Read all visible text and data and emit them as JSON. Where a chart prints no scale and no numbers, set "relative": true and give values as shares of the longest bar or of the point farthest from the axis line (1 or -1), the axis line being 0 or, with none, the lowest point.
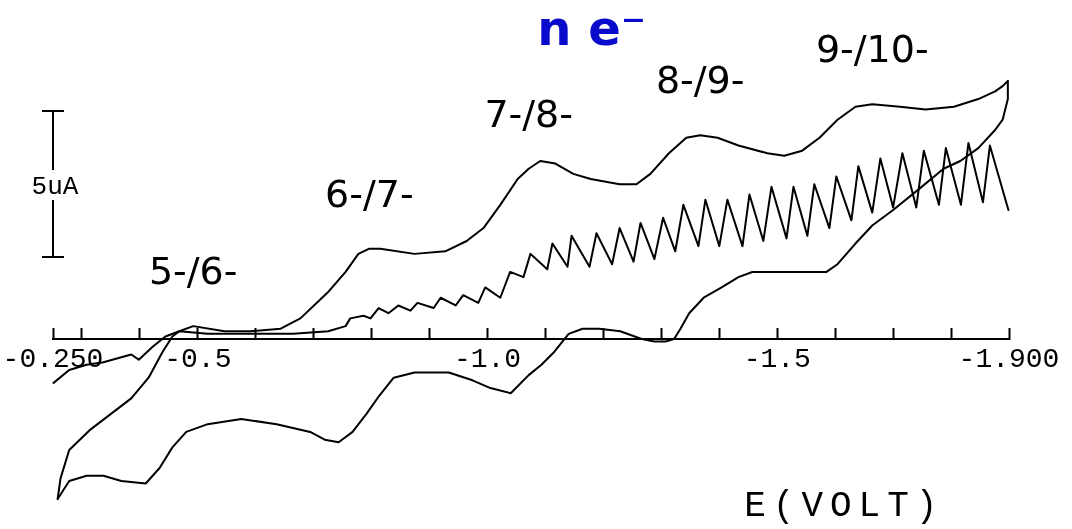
{
  "chart_data": {
    "type": "line",
    "title": "n e⁻",
    "xlabel": "E(VOLT)",
    "relative": true,
    "xlim": [
      -0.25,
      -1.9
    ],
    "xticks": [
      {
        "value": -0.25,
        "label": "-0.250"
      },
      {
        "value": -0.3,
        "label": null
      },
      {
        "value": -0.4,
        "label": null
      },
      -0.5,
      {
        "value": -0.6,
        "label": null
      },
      {
        "value": -0.7,
        "label": null
      },
      {
        "value": -0.8,
        "label": null
      },
      {
        "value": -0.9,
        "label": null
      },
      {
        "value": -1,
        "label": "-1.0"
      },
      {
        "value": -1.1,
        "label": null
      },
      {
        "value": -1.2,
        "label": null
      },
      {
        "value": -1.3,
        "label": null
      },
      {
        "value": -1.4,
        "label": null
      },
      -1.5,
      {
        "value": -1.6,
        "label": null
      },
      {
        "value": -1.7,
        "label": null
      },
      {
        "value": -1.8,
        "label": null
      },
      {
        "value": -1.9,
        "label": "-1.900"
      }
    ],
    "annotations": [
      "5uA",
      {
        "text": "5-/6-",
        "x": -0.492,
        "y": 0.05
      },
      {
        "text": "6-/7-",
        "x": -0.796,
        "y": 0.35
      },
      {
        "text": "7-/8-",
        "x": -1.071,
        "y": 0.66
      },
      {
        "text": "8-/9-",
        "x": -1.367,
        "y": 0.79
      },
      {
        "text": "9-/10-",
        "x": -1.664,
        "y": 0.91
      }
    ],
    "series": [
      {
        "color": "#000000",
        "x": [
          -0.258,
          -0.263,
          -0.278,
          -0.315,
          -0.385,
          -0.415,
          -0.439,
          -0.456,
          -0.468,
          -0.492,
          -0.546,
          -0.591,
          -0.643,
          -0.677,
          -0.724,
          -0.755,
          -0.777,
          -0.796,
          -0.815,
          -0.874,
          -0.927,
          -0.964,
          -0.993,
          -1.022,
          -1.052,
          -1.071,
          -1.091,
          -1.117,
          -1.148,
          -1.178,
          -1.228,
          -1.257,
          -1.281,
          -1.313,
          -1.343,
          -1.367,
          -1.397,
          -1.433,
          -1.483,
          -1.512,
          -1.543,
          -1.573,
          -1.604,
          -1.635,
          -1.664,
          -1.712,
          -1.756,
          -1.805,
          -1.847,
          -1.876,
          -1.889,
          -1.898
        ],
        "values": [
          -0.62,
          -0.54,
          -0.43,
          -0.35,
          -0.23,
          -0.15,
          -0.05,
          0.01,
          0.03,
          0.05,
          0.03,
          0.03,
          0.04,
          0.08,
          0.18,
          0.26,
          0.33,
          0.35,
          0.35,
          0.33,
          0.34,
          0.38,
          0.43,
          0.52,
          0.62,
          0.66,
          0.69,
          0.68,
          0.64,
          0.62,
          0.6,
          0.6,
          0.64,
          0.72,
          0.78,
          0.79,
          0.78,
          0.75,
          0.72,
          0.71,
          0.73,
          0.78,
          0.85,
          0.9,
          0.91,
          0.9,
          0.89,
          0.9,
          0.93,
          0.96,
          0.98,
          1.0
        ]
      },
      {
        "color": "#000000",
        "x": [
          -0.258,
          -0.278,
          -0.308,
          -0.337,
          -0.368,
          -0.41,
          -0.434,
          -0.456,
          -0.48,
          -0.517,
          -0.575,
          -0.636,
          -0.694,
          -0.719,
          -0.743,
          -0.767,
          -0.791,
          -0.813,
          -0.838,
          -0.874,
          -0.933,
          -0.974,
          -1.005,
          -1.04,
          -1.071,
          -1.093,
          -1.115,
          -1.14,
          -1.164,
          -1.193,
          -1.229,
          -1.266,
          -1.288,
          -1.307,
          -1.322,
          -1.333,
          -1.348,
          -1.373,
          -1.404,
          -1.433,
          -1.457,
          -1.495,
          -1.531,
          -1.555,
          -1.585,
          -1.604,
          -1.635,
          -1.664,
          -1.7,
          -1.744,
          -1.787,
          -1.816,
          -1.847,
          -1.876,
          -1.889,
          -1.898,
          -1.898
        ],
        "values": [
          -0.62,
          -0.55,
          -0.53,
          -0.53,
          -0.55,
          -0.56,
          -0.5,
          -0.42,
          -0.36,
          -0.33,
          -0.31,
          -0.33,
          -0.36,
          -0.39,
          -0.4,
          -0.36,
          -0.29,
          -0.22,
          -0.15,
          -0.13,
          -0.13,
          -0.16,
          -0.19,
          -0.21,
          -0.14,
          -0.1,
          -0.05,
          0.02,
          0.04,
          0.04,
          0.03,
          0.0,
          -0.01,
          -0.01,
          0.0,
          0.04,
          0.1,
          0.16,
          0.2,
          0.24,
          0.26,
          0.26,
          0.26,
          0.26,
          0.26,
          0.29,
          0.37,
          0.44,
          0.5,
          0.58,
          0.66,
          0.69,
          0.74,
          0.81,
          0.85,
          0.93,
          1.0
        ]
      },
      {
        "color": "#000000",
        "x": [
          -0.251,
          -0.278,
          -0.308,
          -0.337,
          -0.385,
          -0.398,
          -0.422,
          -0.444,
          -0.468,
          -0.517,
          -0.575,
          -0.665,
          -0.725,
          -0.755,
          -0.763,
          -0.786,
          -0.798,
          -0.812,
          -0.829,
          -0.846,
          -0.867,
          -0.879,
          -0.907,
          -0.919,
          -0.945,
          -0.958,
          -0.984,
          -0.996,
          -1.022,
          -1.039,
          -1.062,
          -1.074,
          -1.103,
          -1.112,
          -1.138,
          -1.145,
          -1.176,
          -1.188,
          -1.215,
          -1.228,
          -1.252,
          -1.264,
          -1.288,
          -1.303,
          -1.324,
          -1.338,
          -1.364,
          -1.376,
          -1.4,
          -1.414,
          -1.44,
          -1.452,
          -1.476,
          -1.49,
          -1.516,
          -1.528,
          -1.552,
          -1.564,
          -1.59,
          -1.602,
          -1.628,
          -1.64,
          -1.664,
          -1.678,
          -1.7,
          -1.716,
          -1.74,
          -1.753,
          -1.779,
          -1.791,
          -1.817,
          -1.83,
          -1.855,
          -1.867,
          -1.899
        ],
        "values": [
          -0.17,
          -0.12,
          -0.1,
          -0.09,
          -0.06,
          -0.08,
          -0.03,
          0.01,
          0.03,
          0.02,
          0.02,
          0.02,
          0.03,
          0.05,
          0.08,
          0.09,
          0.08,
          0.12,
          0.1,
          0.13,
          0.11,
          0.14,
          0.12,
          0.16,
          0.13,
          0.17,
          0.14,
          0.2,
          0.16,
          0.26,
          0.24,
          0.33,
          0.27,
          0.37,
          0.28,
          0.4,
          0.28,
          0.41,
          0.29,
          0.43,
          0.3,
          0.45,
          0.31,
          0.47,
          0.34,
          0.52,
          0.36,
          0.54,
          0.36,
          0.54,
          0.36,
          0.56,
          0.38,
          0.59,
          0.39,
          0.59,
          0.4,
          0.6,
          0.43,
          0.63,
          0.46,
          0.67,
          0.49,
          0.7,
          0.51,
          0.72,
          0.51,
          0.73,
          0.52,
          0.74,
          0.52,
          0.76,
          0.53,
          0.75,
          0.5
        ]
      }
    ]
  }
}
